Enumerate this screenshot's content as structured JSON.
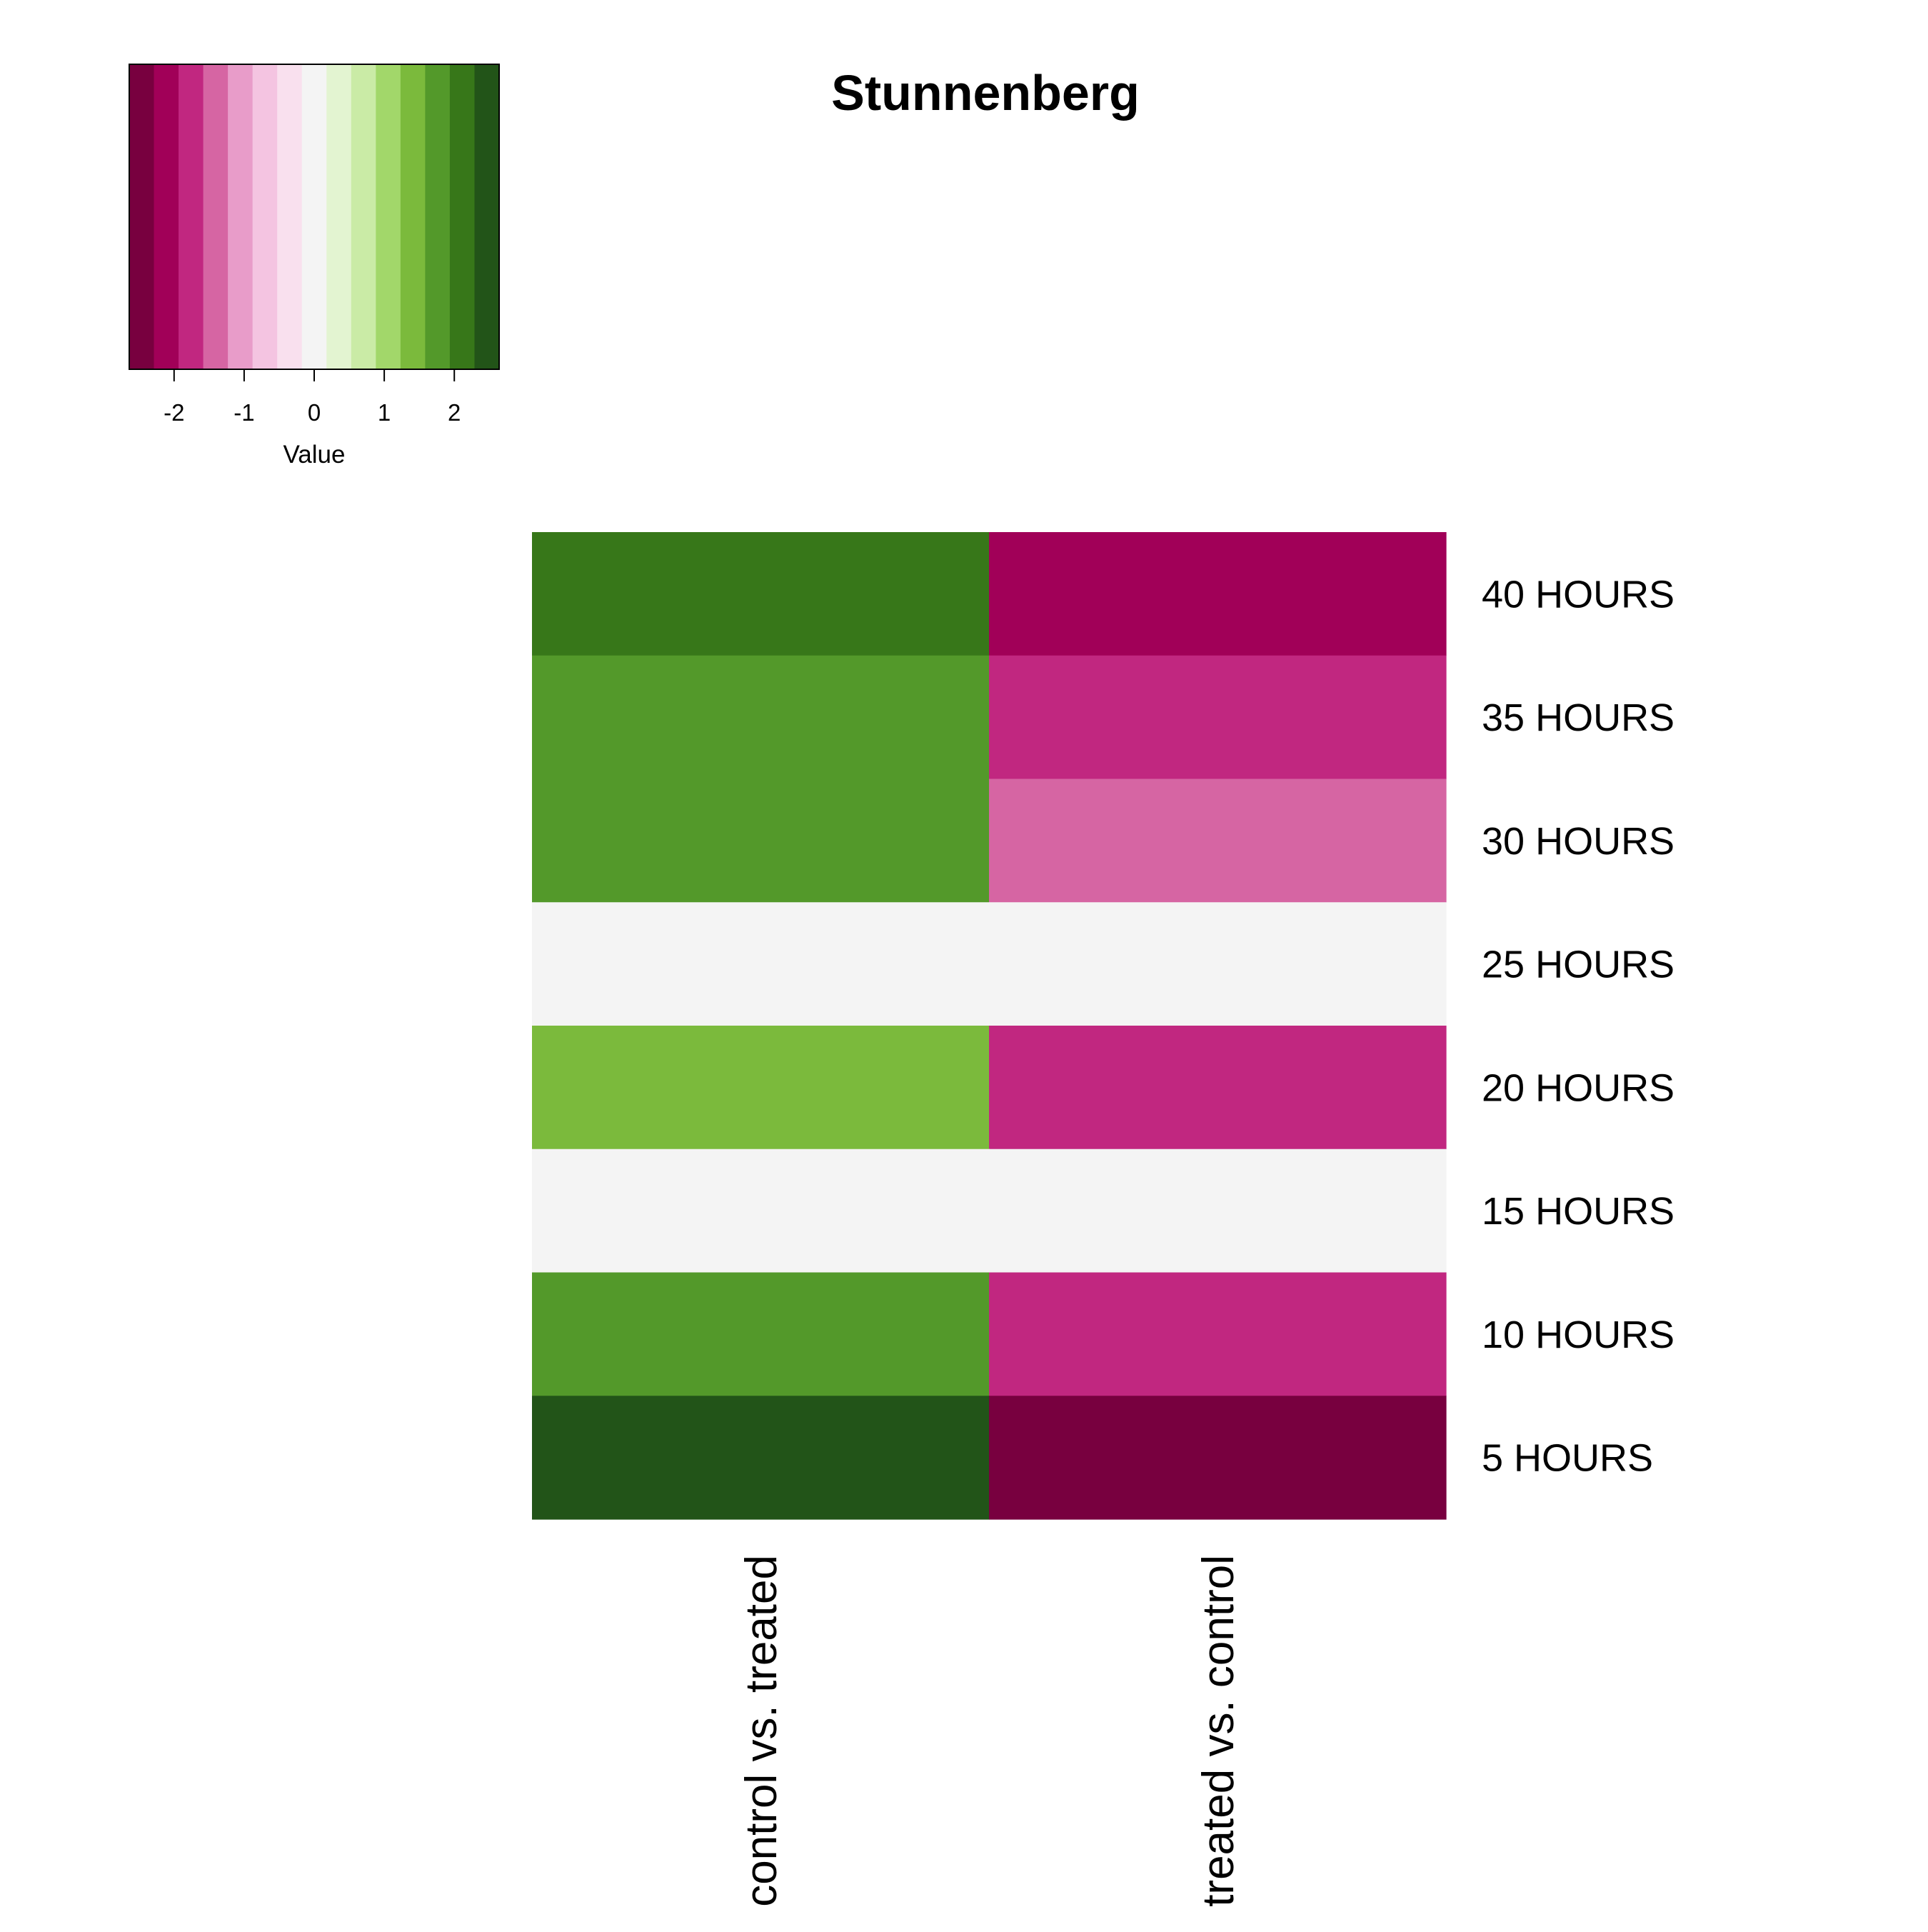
{
  "chart_data": {
    "type": "heatmap",
    "title": "Stunnenberg",
    "rows": [
      "40 HOURS",
      "35 HOURS",
      "30 HOURS",
      "25 HOURS",
      "20 HOURS",
      "15 HOURS",
      "10 HOURS",
      "5 HOURS"
    ],
    "columns": [
      "control vs. treated",
      "treated vs. control"
    ],
    "values": [
      [
        2.2,
        -2.2
      ],
      [
        1.8,
        -1.8
      ],
      [
        1.8,
        -1.4
      ],
      [
        0.0,
        0.0
      ],
      [
        1.4,
        -1.8
      ],
      [
        0.0,
        0.0
      ],
      [
        1.8,
        -1.8
      ],
      [
        2.5,
        -2.5
      ]
    ],
    "color_key": {
      "xlabel": "Value",
      "range": [
        -2.64,
        2.64
      ],
      "ticks": [
        -2,
        -1,
        0,
        1,
        2
      ],
      "tick_labels": [
        "-2",
        "-1",
        "0",
        "1",
        "2"
      ],
      "colors": [
        "#78003F",
        "#A10058",
        "#C12780",
        "#D665A3",
        "#E89CC9",
        "#F4C4E1",
        "#F9E0EE",
        "#F4F4F4",
        "#E3F4D1",
        "#CAEBA6",
        "#A2D76A",
        "#7BBA3C",
        "#53992A",
        "#377719",
        "#225418"
      ]
    }
  }
}
